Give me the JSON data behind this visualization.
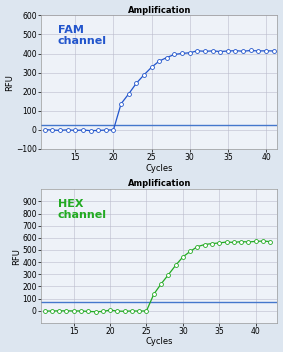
{
  "title": "Amplification",
  "fam_label": "FAM\nchannel",
  "hex_label": "HEX\nchannel",
  "fam_color": "#2255cc",
  "hex_color": "#22aa22",
  "threshold_color_fam": "#4477cc",
  "threshold_color_hex": "#4477cc",
  "xlabel": "Cycles",
  "ylabel": "RFU",
  "fam_ylim": [
    -100,
    600
  ],
  "hex_ylim": [
    -100,
    1000
  ],
  "fam_yticks": [
    -100,
    0,
    100,
    200,
    300,
    400,
    500,
    600
  ],
  "hex_yticks": [
    0,
    100,
    200,
    300,
    400,
    500,
    600,
    700,
    800,
    900
  ],
  "fam_xticks": [
    15,
    20,
    25,
    30,
    35,
    40
  ],
  "hex_xticks": [
    15,
    20,
    25,
    30,
    35,
    40
  ],
  "fam_xlim": [
    10.5,
    41.5
  ],
  "hex_xlim": [
    10.5,
    43
  ],
  "fam_threshold": 28,
  "hex_threshold": 75,
  "fam_midpoint": 22.3,
  "fam_steepness": 0.52,
  "fam_max": 415,
  "fam_min": -3,
  "hex_midpoint": 27.8,
  "hex_steepness": 0.58,
  "hex_max": 570,
  "hex_min": -8,
  "background_color": "#dde6f0",
  "plot_bg_color": "#eef2f8",
  "grid_color": "#bbbbcc",
  "title_fontsize": 6,
  "label_fontsize": 6,
  "channel_label_fontsize": 8,
  "tick_fontsize": 5.5,
  "marker_size": 2.8,
  "line_width": 0.9,
  "marker_edge_width": 0.6
}
